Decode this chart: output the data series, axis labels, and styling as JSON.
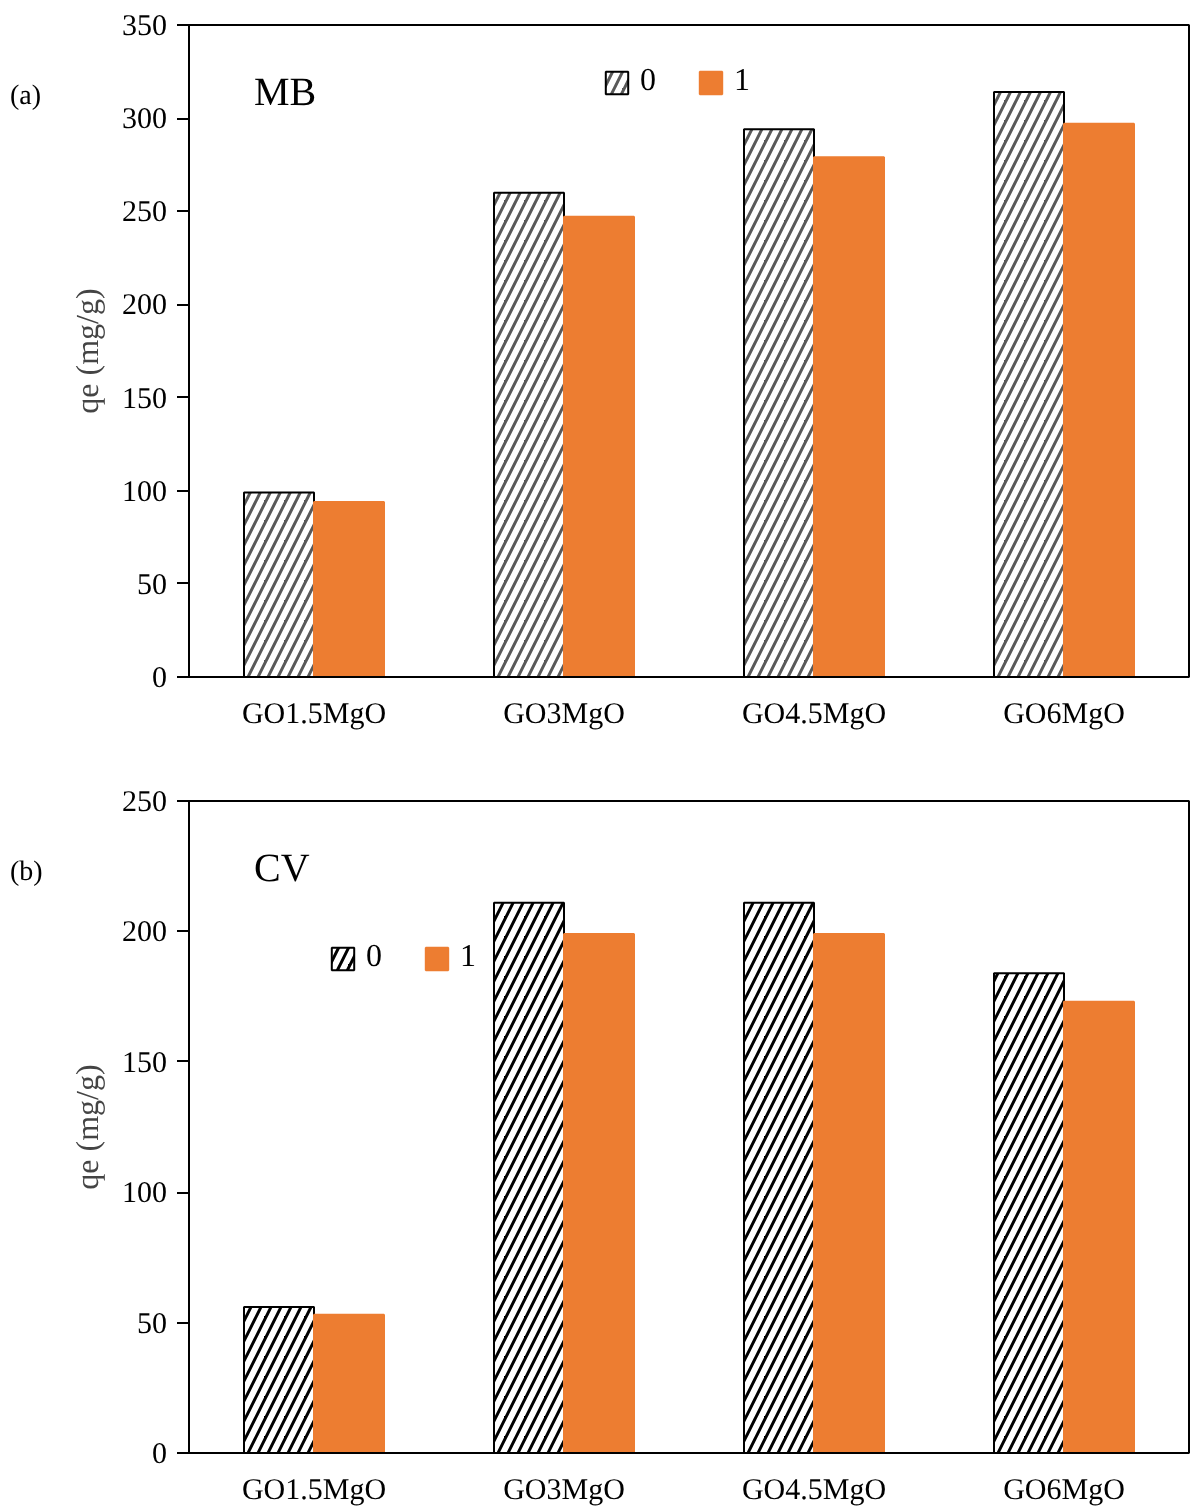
{
  "chart_data": [
    {
      "type": "bar",
      "categories": [
        "GO1.5MgO",
        "GO3MgO",
        "GO4.5MgO",
        "GO6MgO"
      ],
      "ylabel": "qe (mg/g)",
      "annotations": [
        "(a)",
        "MB"
      ],
      "ylim": [
        0,
        350
      ],
      "yticks": [
        0,
        50,
        100,
        150,
        200,
        250,
        300,
        350
      ],
      "grid": false,
      "legend": "top",
      "series": [
        {
          "name": "0",
          "color": "#595959",
          "values": [
            99,
            260,
            294,
            314
          ]
        },
        {
          "name": "1",
          "color": "#ed7d31",
          "values": [
            94,
            247,
            279,
            297
          ]
        }
      ]
    },
    {
      "type": "bar",
      "categories": [
        "GO1.5MgO",
        "GO3MgO",
        "GO4.5MgO",
        "GO6MgO"
      ],
      "ylabel": "qe (mg/g)",
      "annotations": [
        "(b)",
        "CV"
      ],
      "ylim": [
        0,
        250
      ],
      "yticks": [
        0,
        50,
        100,
        150,
        200,
        250
      ],
      "grid": false,
      "legend": "top left",
      "series": [
        {
          "name": "0",
          "color": "#000000",
          "values": [
            56,
            211,
            211,
            184
          ]
        },
        {
          "name": "1",
          "color": "#ed7d31",
          "values": [
            53,
            199,
            199,
            173
          ]
        }
      ]
    }
  ]
}
